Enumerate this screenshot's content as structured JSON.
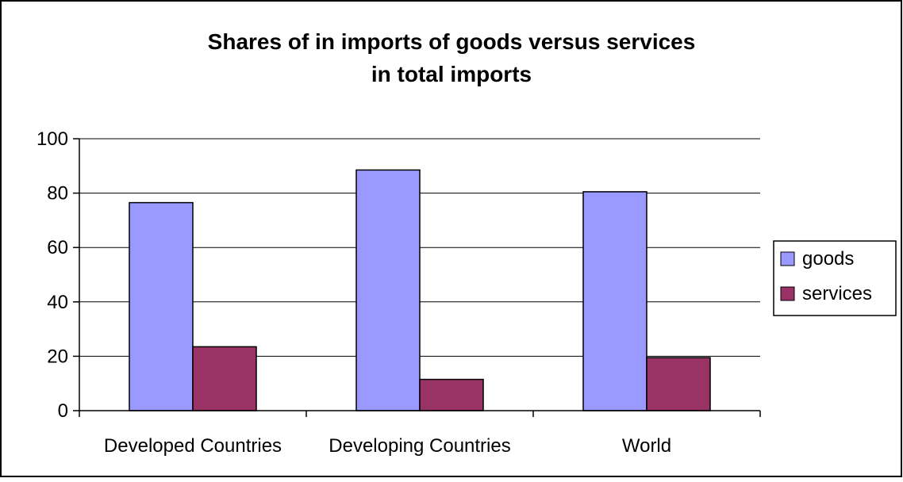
{
  "chart_data": {
    "type": "bar",
    "title_lines": [
      "Shares of in imports of goods versus services",
      "in total imports"
    ],
    "categories": [
      "Developed Countries",
      "Developing Countries",
      "World"
    ],
    "series": [
      {
        "name": "goods",
        "values": [
          76.5,
          88.5,
          80.5
        ],
        "color": "#9999ff"
      },
      {
        "name": "services",
        "values": [
          23.5,
          11.5,
          19.5
        ],
        "color": "#993366"
      }
    ],
    "xlabel": "",
    "ylabel": "",
    "ylim": [
      0,
      100
    ],
    "yticks": [
      0,
      20,
      40,
      60,
      80,
      100
    ],
    "ytick_labels": [
      "0",
      "20",
      "40",
      "60",
      "80",
      "100"
    ],
    "grid": true,
    "legend_position": "right"
  }
}
